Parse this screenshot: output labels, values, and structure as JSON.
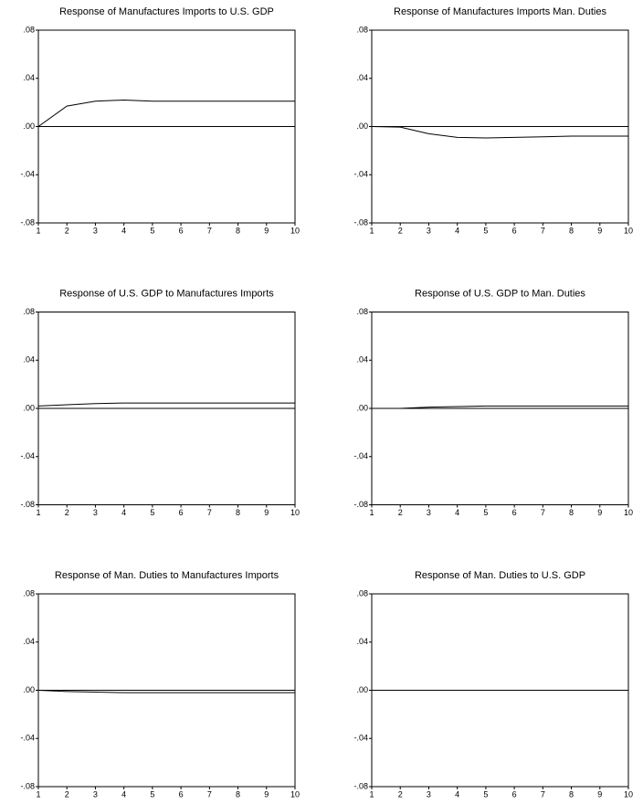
{
  "chart_data": [
    {
      "type": "line",
      "title": "Response of Manufactures Imports to U.S. GDP",
      "x": [
        1,
        2,
        3,
        4,
        5,
        6,
        7,
        8,
        9,
        10
      ],
      "values": [
        0,
        0.017,
        0.021,
        0.022,
        0.021,
        0.021,
        0.021,
        0.021,
        0.021,
        0.021
      ],
      "color": "#000000",
      "xlim": [
        1,
        10
      ],
      "xticks": [
        1,
        2,
        3,
        4,
        5,
        6,
        7,
        8,
        9,
        10
      ],
      "ylim": [
        -0.08,
        0.08
      ],
      "yticks": [
        {
          "value": -0.08,
          "label": "-.08"
        },
        {
          "value": -0.04,
          "label": "-.04"
        },
        {
          "value": 0,
          "label": ".00"
        },
        {
          "value": 0.04,
          "label": ".04"
        },
        {
          "value": 0.08,
          "label": ".08"
        }
      ]
    },
    {
      "type": "line",
      "title": "Response of Manufactures Imports Man. Duties",
      "x": [
        1,
        2,
        3,
        4,
        5,
        6,
        7,
        8,
        9,
        10
      ],
      "values": [
        0,
        -0.0005,
        -0.006,
        -0.009,
        -0.0095,
        -0.009,
        -0.0085,
        -0.008,
        -0.008,
        -0.008
      ],
      "color": "#000000",
      "xlim": [
        1,
        10
      ],
      "xticks": [
        1,
        2,
        3,
        4,
        5,
        6,
        7,
        8,
        9,
        10
      ],
      "ylim": [
        -0.08,
        0.08
      ],
      "yticks": [
        {
          "value": -0.08,
          "label": "-.08"
        },
        {
          "value": -0.04,
          "label": "-.04"
        },
        {
          "value": 0,
          "label": ".00"
        },
        {
          "value": 0.04,
          "label": ".04"
        },
        {
          "value": 0.08,
          "label": ".08"
        }
      ]
    },
    {
      "type": "line",
      "title": "Response of U.S. GDP to Manufactures Imports",
      "x": [
        1,
        2,
        3,
        4,
        5,
        6,
        7,
        8,
        9,
        10
      ],
      "values": [
        0.002,
        0.003,
        0.004,
        0.0045,
        0.0045,
        0.0045,
        0.0045,
        0.0045,
        0.0045,
        0.0045
      ],
      "color": "#000000",
      "xlim": [
        1,
        10
      ],
      "xticks": [
        1,
        2,
        3,
        4,
        5,
        6,
        7,
        8,
        9,
        10
      ],
      "ylim": [
        -0.08,
        0.08
      ],
      "yticks": [
        {
          "value": -0.08,
          "label": "-.08"
        },
        {
          "value": -0.04,
          "label": "-.04"
        },
        {
          "value": 0,
          "label": ".00"
        },
        {
          "value": 0.04,
          "label": ".04"
        },
        {
          "value": 0.08,
          "label": ".08"
        }
      ]
    },
    {
      "type": "line",
      "title": "Response of U.S. GDP to Man. Duties",
      "x": [
        1,
        2,
        3,
        4,
        5,
        6,
        7,
        8,
        9,
        10
      ],
      "values": [
        0,
        0,
        0.001,
        0.0015,
        0.002,
        0.002,
        0.002,
        0.002,
        0.002,
        0.002
      ],
      "color": "#000000",
      "xlim": [
        1,
        10
      ],
      "xticks": [
        1,
        2,
        3,
        4,
        5,
        6,
        7,
        8,
        9,
        10
      ],
      "ylim": [
        -0.08,
        0.08
      ],
      "yticks": [
        {
          "value": -0.08,
          "label": "-.08"
        },
        {
          "value": -0.04,
          "label": "-.04"
        },
        {
          "value": 0,
          "label": ".00"
        },
        {
          "value": 0.04,
          "label": ".04"
        },
        {
          "value": 0.08,
          "label": ".08"
        }
      ]
    },
    {
      "type": "line",
      "title": "Response of Man. Duties to Manufactures Imports",
      "x": [
        1,
        2,
        3,
        4,
        5,
        6,
        7,
        8,
        9,
        10
      ],
      "values": [
        0,
        -0.001,
        -0.0015,
        -0.002,
        -0.002,
        -0.002,
        -0.002,
        -0.002,
        -0.002,
        -0.002
      ],
      "color": "#000000",
      "xlim": [
        1,
        10
      ],
      "xticks": [
        1,
        2,
        3,
        4,
        5,
        6,
        7,
        8,
        9,
        10
      ],
      "ylim": [
        -0.08,
        0.08
      ],
      "yticks": [
        {
          "value": -0.08,
          "label": "-.08"
        },
        {
          "value": -0.04,
          "label": "-.04"
        },
        {
          "value": 0,
          "label": ".00"
        },
        {
          "value": 0.04,
          "label": ".04"
        },
        {
          "value": 0.08,
          "label": ".08"
        }
      ]
    },
    {
      "type": "line",
      "title": "Response of Man. Duties to U.S. GDP",
      "x": [
        1,
        2,
        3,
        4,
        5,
        6,
        7,
        8,
        9,
        10
      ],
      "values": [
        0,
        0,
        0,
        0,
        0,
        0,
        0,
        0,
        0,
        0
      ],
      "color": "#000000",
      "xlim": [
        1,
        10
      ],
      "xticks": [
        1,
        2,
        3,
        4,
        5,
        6,
        7,
        8,
        9,
        10
      ],
      "ylim": [
        -0.08,
        0.08
      ],
      "yticks": [
        {
          "value": -0.08,
          "label": "-.08"
        },
        {
          "value": -0.04,
          "label": "-.04"
        },
        {
          "value": 0,
          "label": ".00"
        },
        {
          "value": 0.04,
          "label": ".04"
        },
        {
          "value": 0.08,
          "label": ".08"
        }
      ]
    }
  ]
}
